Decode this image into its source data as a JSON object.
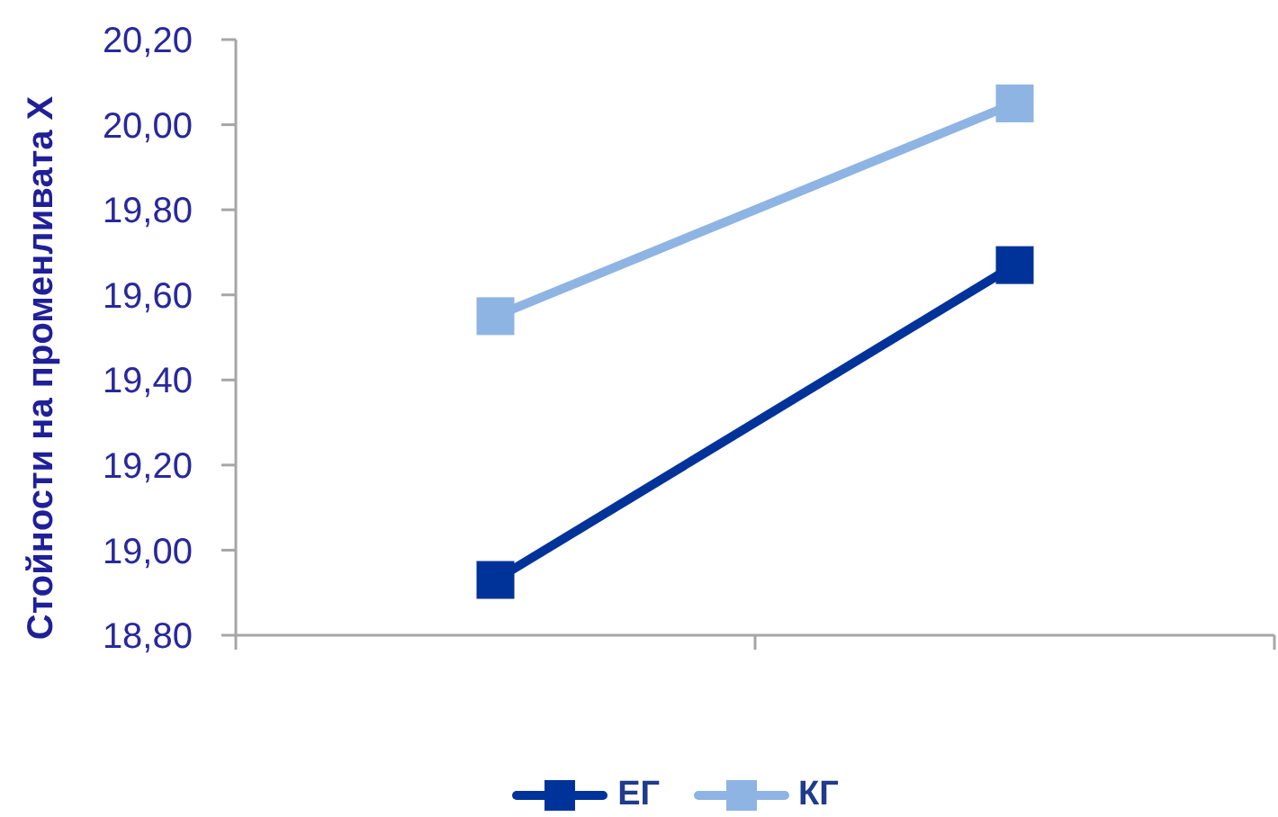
{
  "chart_data": {
    "type": "line",
    "ylabel": "Стойности на променливата X",
    "categories": [
      null,
      null
    ],
    "series": [
      {
        "name": "ЕГ",
        "color": "#003399",
        "values": [
          18.93,
          19.67
        ]
      },
      {
        "name": "КГ",
        "color": "#8eb4e3",
        "values": [
          19.55,
          20.05
        ]
      }
    ],
    "ylim": [
      18.8,
      20.2
    ],
    "yticks": [
      {
        "value": 18.8,
        "label": "18,80"
      },
      {
        "value": 19,
        "label": "19,00"
      },
      {
        "value": 19.2,
        "label": "19,20"
      },
      {
        "value": 19.4,
        "label": "19,40"
      },
      {
        "value": 19.6,
        "label": "19,60"
      },
      {
        "value": 19.8,
        "label": "19,80"
      },
      {
        "value": 20,
        "label": "20,00"
      },
      {
        "value": 20.2,
        "label": "20,20"
      }
    ],
    "legend": "bottom",
    "marker": "square",
    "line_style": "solid"
  }
}
